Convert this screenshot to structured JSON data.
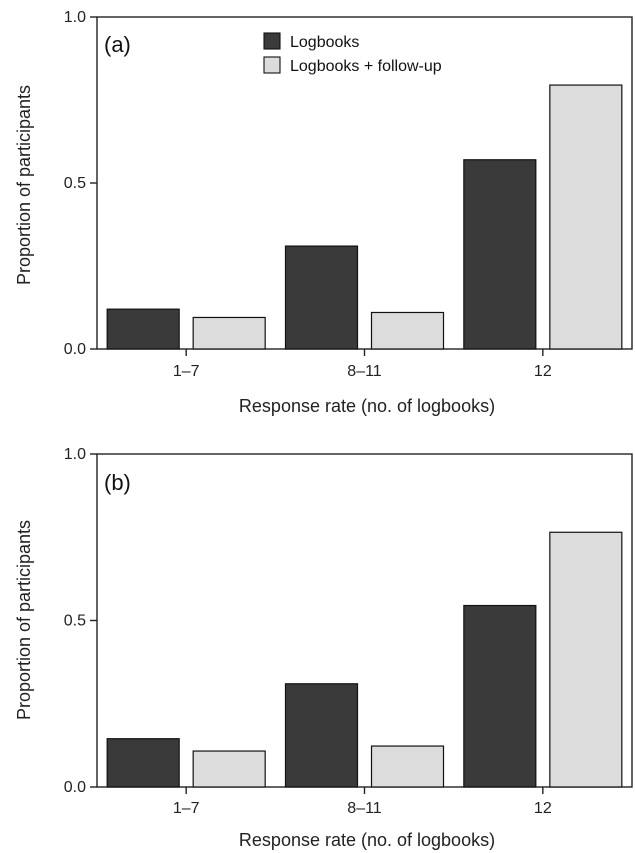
{
  "chart_data": [
    {
      "type": "bar",
      "panel_label": "(a)",
      "xlabel": "Response rate (no. of logbooks)",
      "ylabel": "Proportion of participants",
      "categories": [
        "1–7",
        "8–11",
        "12"
      ],
      "y_ticks": [
        "0.0",
        "0.5",
        "1.0"
      ],
      "ylim": [
        0,
        1
      ],
      "legend": "top-center",
      "series": [
        {
          "name": "Logbooks",
          "color": "#3a3a3a",
          "values": [
            0.12,
            0.31,
            0.57
          ]
        },
        {
          "name": "Logbooks + follow-up",
          "color": "#dcdcdc",
          "values": [
            0.095,
            0.11,
            0.795
          ]
        }
      ]
    },
    {
      "type": "bar",
      "panel_label": "(b)",
      "xlabel": "Response rate (no. of logbooks)",
      "ylabel": "Proportion of participants",
      "categories": [
        "1–7",
        "8–11",
        "12"
      ],
      "y_ticks": [
        "0.0",
        "0.5",
        "1.0"
      ],
      "ylim": [
        0,
        1
      ],
      "series": [
        {
          "name": "Logbooks",
          "color": "#3a3a3a",
          "values": [
            0.145,
            0.31,
            0.545
          ]
        },
        {
          "name": "Logbooks + follow-up",
          "color": "#dcdcdc",
          "values": [
            0.108,
            0.123,
            0.765
          ]
        }
      ]
    }
  ]
}
